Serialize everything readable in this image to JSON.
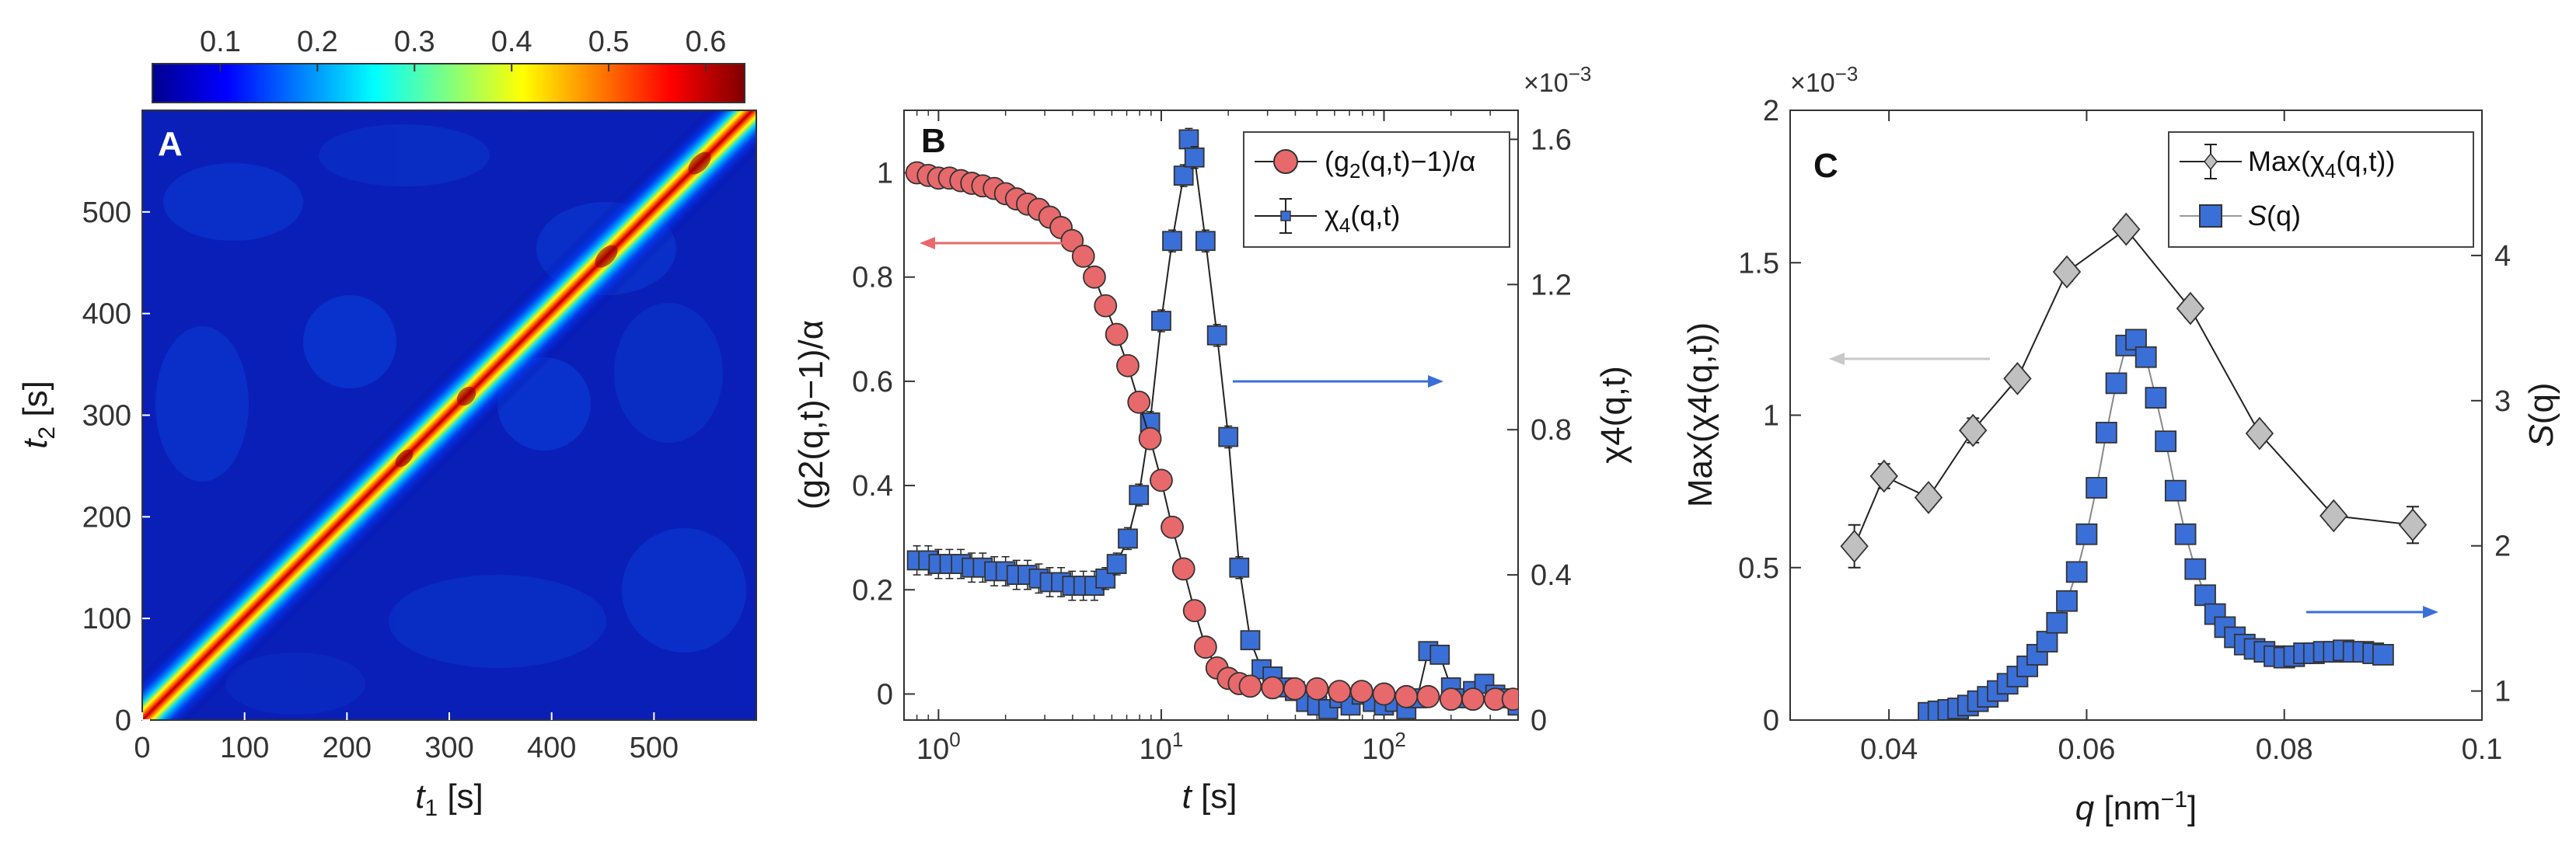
{
  "chart_data": [
    {
      "panel": "A",
      "type": "heatmap",
      "panel_label": "A",
      "description": "two-time correlation map, intensity concentrated along the diagonal t1 = t2",
      "colorbar": {
        "colormap": "jet",
        "range": [
          0.03,
          0.64
        ],
        "tick_labels": [
          "0.1",
          "0.2",
          "0.3",
          "0.4",
          "0.5",
          "0.6"
        ],
        "ticks": [
          0.1,
          0.2,
          0.3,
          0.4,
          0.5,
          0.6
        ]
      },
      "xlabel_var": "t",
      "xlabel_sub": "1",
      "xlabel_unit": " [s]",
      "ylabel_var": "t",
      "ylabel_sub": "2",
      "ylabel_unit": " [s]",
      "xlim": [
        0,
        600
      ],
      "ylim": [
        0,
        600
      ],
      "xticks": [
        "0",
        "100",
        "200",
        "300",
        "400",
        "500"
      ],
      "yticks": [
        "0",
        "100",
        "200",
        "300",
        "400",
        "500"
      ],
      "diagonal_peak_value": 0.62,
      "background_value": 0.07
    },
    {
      "panel": "B",
      "type": "scatter",
      "panel_label": "B",
      "x_scale": "log",
      "xlabel_var": "t",
      "xlabel_unit": " [s]",
      "xlim": [
        0.7,
        400
      ],
      "xticks": [
        {
          "base": "10",
          "exp": "0",
          "value": 1
        },
        {
          "base": "10",
          "exp": "1",
          "value": 10
        },
        {
          "base": "10",
          "exp": "2",
          "value": 100
        }
      ],
      "ylabel_left": "(g2(q,t)−1)/α",
      "ylabel_right": "χ4(q,t)",
      "ylim_left": [
        -0.05,
        1.12
      ],
      "yticks_left": [
        "0",
        "0.2",
        "0.4",
        "0.6",
        "0.8",
        "1"
      ],
      "ylim_right": [
        0,
        0.00168
      ],
      "yticks_right": [
        "0",
        "0.4",
        "0.8",
        "1.2",
        "1.6"
      ],
      "right_multiplier": "×10",
      "right_multiplier_exp": "−3",
      "legend_position": "top-right",
      "series": [
        {
          "name": "(g2(q,t)−1)/α",
          "legend_main": "(g",
          "legend_sub": "2",
          "legend_rest": "(q,t)−1)/α",
          "axis": "left",
          "marker": "circle",
          "color": "#e8696b",
          "x": [
            0.8,
            0.9,
            1.0,
            1.12,
            1.26,
            1.41,
            1.58,
            1.78,
            2.0,
            2.24,
            2.51,
            2.82,
            3.16,
            3.55,
            3.98,
            4.47,
            5.01,
            5.62,
            6.31,
            7.08,
            7.94,
            8.91,
            10.0,
            11.2,
            12.6,
            14.1,
            15.8,
            17.8,
            20.0,
            22.4,
            25.1,
            31.6,
            39.8,
            50.1,
            63.1,
            79.4,
            100,
            126,
            158,
            200,
            251,
            316,
            380
          ],
          "values": [
            1.0,
            0.995,
            0.99,
            0.99,
            0.985,
            0.98,
            0.975,
            0.97,
            0.96,
            0.95,
            0.94,
            0.93,
            0.915,
            0.895,
            0.87,
            0.84,
            0.8,
            0.745,
            0.69,
            0.63,
            0.56,
            0.49,
            0.41,
            0.32,
            0.24,
            0.16,
            0.09,
            0.05,
            0.03,
            0.02,
            0.015,
            0.012,
            0.01,
            0.01,
            0.005,
            0.005,
            0.0,
            -0.005,
            -0.005,
            -0.01,
            -0.01,
            -0.01,
            -0.01
          ]
        },
        {
          "name": "χ4(q,t)",
          "legend_main": "χ",
          "legend_sub": "4",
          "legend_rest": "(q,t)",
          "axis": "right",
          "marker": "square",
          "color": "#3b6fd8",
          "x": [
            0.8,
            0.9,
            1.0,
            1.12,
            1.26,
            1.41,
            1.58,
            1.78,
            2.0,
            2.24,
            2.51,
            2.82,
            3.16,
            3.55,
            3.98,
            4.47,
            5.01,
            5.62,
            6.31,
            7.08,
            7.94,
            8.91,
            10.0,
            11.2,
            12.6,
            13.3,
            14.1,
            15.8,
            17.8,
            20.0,
            22.4,
            25.1,
            28.2,
            31.6,
            35.5,
            39.8,
            44.7,
            50.1,
            56.2,
            63.1,
            70.8,
            79.4,
            89.1,
            100,
            112,
            126,
            141,
            158,
            178,
            200,
            224,
            251,
            282,
            316,
            355,
            398
          ],
          "values": [
            0.00044,
            0.00044,
            0.00043,
            0.00043,
            0.00043,
            0.00042,
            0.00042,
            0.00041,
            0.00041,
            0.0004,
            0.0004,
            0.00039,
            0.00038,
            0.00038,
            0.00037,
            0.00037,
            0.00037,
            0.00039,
            0.00043,
            0.0005,
            0.00062,
            0.00082,
            0.0011,
            0.00132,
            0.0015,
            0.0016,
            0.00155,
            0.00132,
            0.00106,
            0.00078,
            0.00042,
            0.00022,
            0.00014,
            0.00012,
            9e-05,
            8e-05,
            5e-05,
            4e-05,
            3e-05,
            6e-05,
            4e-05,
            7e-05,
            5e-05,
            4e-05,
            5e-05,
            3e-05,
            6e-05,
            0.00019,
            0.00018,
            9e-05,
            6e-05,
            8e-05,
            0.0001,
            7e-05,
            6e-05,
            4e-05
          ],
          "errors": [
            4e-05,
            4e-05,
            4e-05,
            4e-05,
            4e-05,
            4e-05,
            4e-05,
            4e-05,
            4e-05,
            4e-05,
            4e-05,
            4e-05,
            4e-05,
            4e-05,
            4e-05,
            4e-05,
            4e-05,
            3e-05,
            3e-05,
            3e-05,
            3e-05,
            3e-05,
            3e-05,
            3e-05,
            3e-05,
            3e-05,
            3e-05,
            3e-05,
            3e-05,
            3e-05,
            3e-05,
            2e-05,
            2e-05,
            2e-05,
            2e-05,
            2e-05,
            2e-05,
            2e-05,
            2e-05,
            2e-05,
            2e-05,
            2e-05,
            2e-05,
            2e-05,
            2e-05,
            2e-05,
            2e-05,
            2e-05,
            2e-05,
            2e-05,
            2e-05,
            2e-05,
            2e-05,
            2e-05,
            2e-05,
            2e-05
          ]
        }
      ],
      "arrows": [
        {
          "direction": "left",
          "color": "#e8696b"
        },
        {
          "direction": "right",
          "color": "#3b6fd8"
        }
      ]
    },
    {
      "panel": "C",
      "type": "line",
      "panel_label": "C",
      "xlabel_var": "q",
      "xlabel_unit": " [nm",
      "xlabel_exp": "−1",
      "xlabel_close": "]",
      "xlim": [
        0.03,
        0.1
      ],
      "xticks": [
        "0.04",
        "0.06",
        "0.08",
        "0.1"
      ],
      "ylabel_left": "Max(χ4(q,t))",
      "ylabel_right_var": "S",
      "ylabel_right_rest": "(q)",
      "ylim_left": [
        0,
        0.002
      ],
      "yticks_left": [
        "0",
        "0.5",
        "1",
        "1.5",
        "2"
      ],
      "ylim_right": [
        0.8,
        5.0
      ],
      "yticks_right": [
        "1",
        "2",
        "3",
        "4"
      ],
      "left_multiplier": "×10",
      "left_multiplier_exp": "−3",
      "legend_position": "top-right",
      "series": [
        {
          "name": "Max(χ4(q,t))",
          "legend_main": "Max(χ",
          "legend_sub": "4",
          "legend_rest": "(q,t))",
          "axis": "left",
          "marker": "diamond",
          "color": "#c0c0c0",
          "x": [
            0.0365,
            0.0395,
            0.044,
            0.0485,
            0.053,
            0.058,
            0.064,
            0.0705,
            0.0775,
            0.085,
            0.093
          ],
          "values": [
            0.00057,
            0.0008,
            0.00073,
            0.00095,
            0.00112,
            0.00147,
            0.00161,
            0.00135,
            0.00094,
            0.00067,
            0.00064
          ],
          "errors": [
            7e-05,
            4e-05,
            3e-05,
            4e-05,
            3e-05,
            3e-05,
            3e-05,
            3e-05,
            3e-05,
            3e-05,
            6e-05
          ]
        },
        {
          "name": "S(q)",
          "legend_main": "S",
          "legend_sub": "",
          "legend_rest": "(q)",
          "axis": "right",
          "marker": "square",
          "color": "#3b6fd8",
          "x": [
            0.044,
            0.045,
            0.046,
            0.047,
            0.048,
            0.049,
            0.05,
            0.051,
            0.052,
            0.053,
            0.054,
            0.055,
            0.056,
            0.057,
            0.058,
            0.059,
            0.06,
            0.061,
            0.062,
            0.063,
            0.064,
            0.065,
            0.066,
            0.067,
            0.068,
            0.069,
            0.07,
            0.071,
            0.072,
            0.073,
            0.074,
            0.075,
            0.076,
            0.077,
            0.078,
            0.079,
            0.08,
            0.081,
            0.082,
            0.083,
            0.084,
            0.085,
            0.086,
            0.087,
            0.088,
            0.089,
            0.09
          ],
          "values": [
            0.85,
            0.86,
            0.87,
            0.88,
            0.9,
            0.93,
            0.96,
            1.0,
            1.05,
            1.1,
            1.17,
            1.25,
            1.34,
            1.47,
            1.62,
            1.82,
            2.08,
            2.4,
            2.78,
            3.12,
            3.38,
            3.42,
            3.3,
            3.02,
            2.72,
            2.38,
            2.08,
            1.84,
            1.66,
            1.53,
            1.44,
            1.37,
            1.32,
            1.29,
            1.27,
            1.24,
            1.23,
            1.24,
            1.26,
            1.26,
            1.27,
            1.27,
            1.28,
            1.27,
            1.27,
            1.26,
            1.25
          ]
        }
      ],
      "arrows": [
        {
          "direction": "left",
          "color": "#c8c8c8"
        },
        {
          "direction": "right",
          "color": "#3b6fd8"
        }
      ]
    }
  ]
}
